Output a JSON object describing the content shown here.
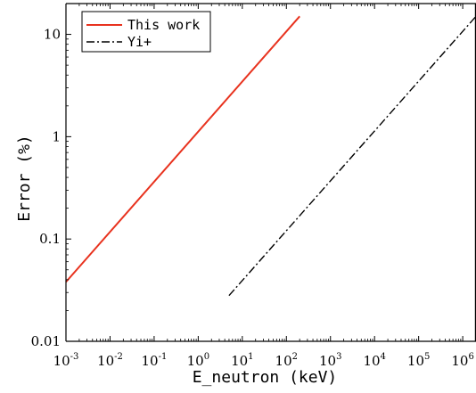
{
  "chart_data": {
    "type": "line",
    "title": "",
    "xlabel": "E_neutron (keV)",
    "ylabel": "Error (%)",
    "xscale": "log",
    "yscale": "log",
    "xlim": [
      0.001,
      2000000
    ],
    "ylim": [
      0.01,
      20
    ],
    "grid": false,
    "legend_position": "top-left",
    "x_ticks": [
      {
        "base": "10",
        "exp": "-3"
      },
      {
        "base": "10",
        "exp": "-2"
      },
      {
        "base": "10",
        "exp": "-1"
      },
      {
        "base": "10",
        "exp": "0"
      },
      {
        "base": "10",
        "exp": "1"
      },
      {
        "base": "10",
        "exp": "2"
      },
      {
        "base": "10",
        "exp": "3"
      },
      {
        "base": "10",
        "exp": "4"
      },
      {
        "base": "10",
        "exp": "5"
      },
      {
        "base": "10",
        "exp": "6"
      }
    ],
    "x_tick_values": [
      0.001,
      0.01,
      0.1,
      1,
      10,
      100,
      1000,
      10000,
      100000,
      1000000
    ],
    "y_ticks": [
      "0.01",
      "0.1",
      "1",
      "10"
    ],
    "y_tick_values": [
      0.01,
      0.1,
      1,
      10
    ],
    "series": [
      {
        "name": "This work",
        "color": "#e8321e",
        "dash": "solid",
        "x": [
          0.001,
          200
        ],
        "y": [
          0.038,
          15
        ]
      },
      {
        "name": "Yi+",
        "color": "#000000",
        "dash": "dashdot",
        "x": [
          5,
          2000000
        ],
        "y": [
          0.028,
          15
        ]
      }
    ]
  }
}
